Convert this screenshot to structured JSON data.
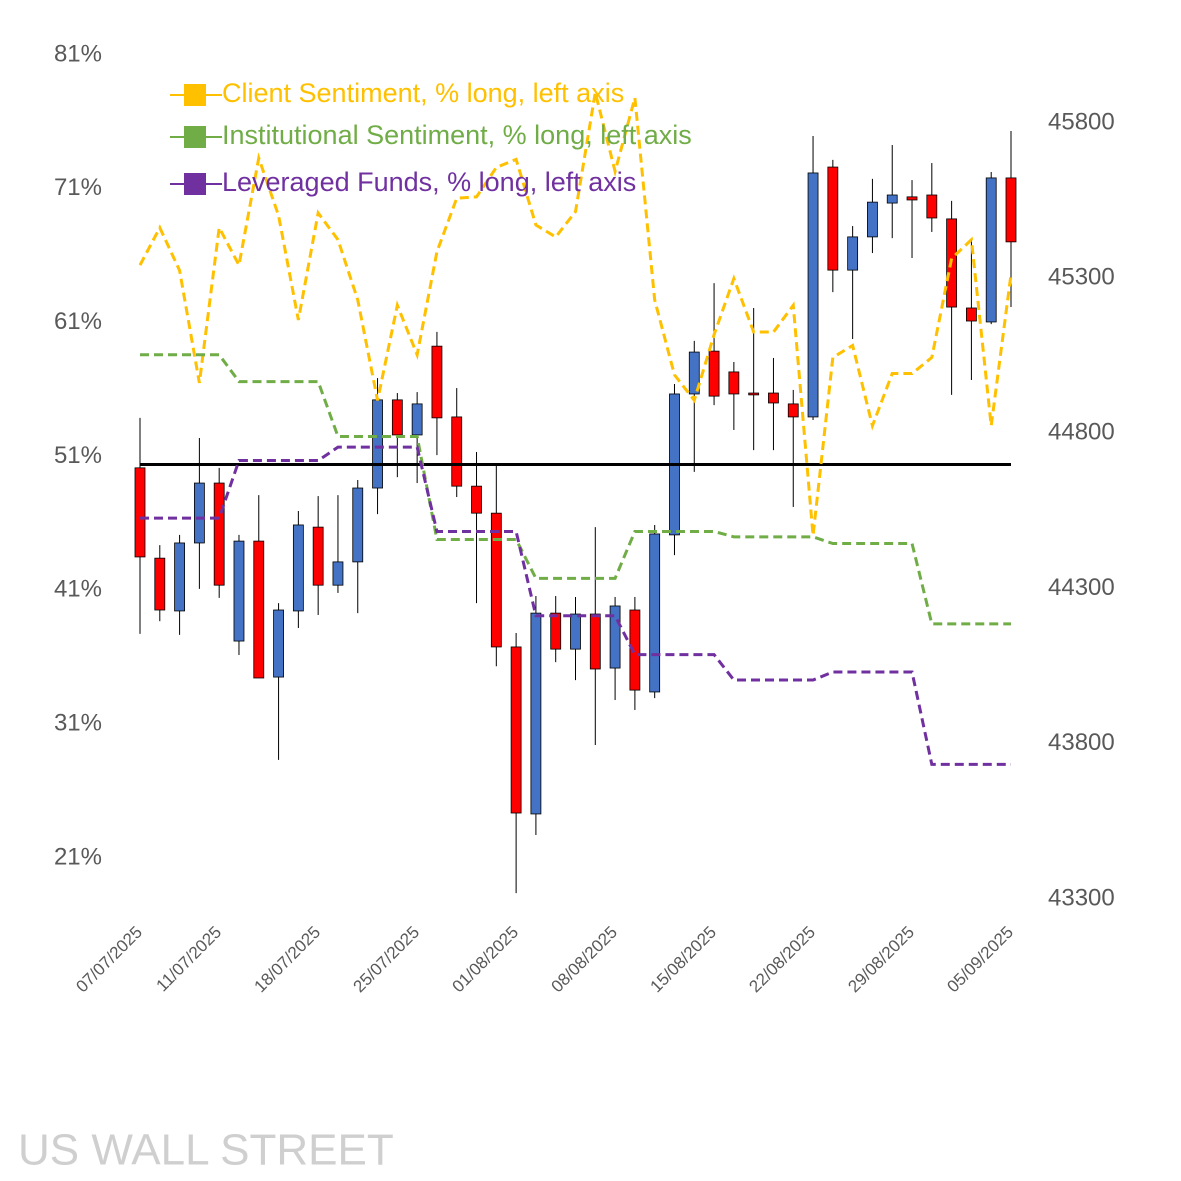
{
  "chart_data": {
    "type": "candlestick",
    "categories": [
      "07/07/2025",
      null,
      null,
      null,
      "11/07/2025",
      null,
      null,
      null,
      null,
      "18/07/2025",
      null,
      null,
      null,
      null,
      "25/07/2025",
      null,
      null,
      null,
      null,
      "01/08/2025",
      null,
      null,
      null,
      null,
      "08/08/2025",
      null,
      null,
      null,
      null,
      "15/08/2025",
      null,
      null,
      null,
      null,
      "22/08/2025",
      null,
      null,
      null,
      null,
      "29/08/2025",
      null,
      null,
      null,
      null,
      "05/09/2025"
    ],
    "axis": "y2",
    "open": [
      44689,
      44398,
      44228,
      44447,
      44640,
      44131,
      44453,
      44015,
      44228,
      44498,
      44311,
      44386,
      44624,
      44908,
      44795,
      45081,
      44853,
      44630,
      44543,
      44112,
      43574,
      44221,
      44105,
      44218,
      44044,
      44231,
      43967,
      44473,
      44927,
      45065,
      44998,
      44930,
      44930,
      44895,
      44853,
      45658,
      45326,
      45433,
      45542,
      45562,
      45568,
      45491,
      45204,
      45159,
      45623
    ],
    "high": [
      44850,
      44440,
      44473,
      44785,
      44689,
      44473,
      44601,
      44253,
      44550,
      44598,
      44601,
      44650,
      44978,
      44930,
      44933,
      45127,
      44946,
      44740,
      44698,
      44157,
      44276,
      44276,
      44273,
      44498,
      44273,
      44273,
      44505,
      44959,
      45098,
      45284,
      45030,
      45204,
      45043,
      44940,
      45758,
      45681,
      45468,
      45620,
      45729,
      45616,
      45671,
      45549,
      45423,
      45642,
      45774
    ],
    "low": [
      44154,
      44195,
      44151,
      44299,
      44270,
      44086,
      44012,
      43748,
      44173,
      44215,
      44286,
      44221,
      44540,
      44659,
      44640,
      44730,
      44595,
      44253,
      44050,
      43319,
      43506,
      44063,
      44005,
      43796,
      43941,
      43909,
      43947,
      44408,
      44676,
      44891,
      44811,
      44746,
      44746,
      44563,
      44843,
      45255,
      45104,
      45381,
      45429,
      45365,
      45449,
      44924,
      44972,
      45152,
      45207
    ],
    "close": [
      44402,
      44231,
      44447,
      44640,
      44311,
      44453,
      44012,
      44231,
      44505,
      44311,
      44386,
      44624,
      44908,
      44795,
      44895,
      44850,
      44630,
      44543,
      44112,
      43577,
      44221,
      44105,
      44218,
      44041,
      44244,
      43973,
      44476,
      44927,
      45062,
      44920,
      44927,
      44924,
      44898,
      44853,
      45639,
      45326,
      45433,
      45545,
      45568,
      45552,
      45494,
      45207,
      45162,
      45623,
      45417
    ],
    "up_color": "#4472c4",
    "down_color": "#ff0000",
    "series": [
      {
        "name": "Client Sentiment, % long, left axis",
        "color": "#ffc000",
        "values": [
          65.3,
          68.1,
          64.9,
          56.5,
          68.1,
          65.3,
          73.3,
          69.0,
          61.2,
          69.2,
          67.2,
          62.7,
          55.2,
          62.3,
          58.6,
          66.3,
          70.3,
          70.4,
          72.6,
          73.2,
          68.3,
          67.4,
          69.3,
          78.2,
          72.3,
          77.8,
          62.7,
          57.1,
          55.2,
          60.1,
          64.3,
          60.3,
          60.3,
          62.3,
          45.1,
          58.4,
          59.3,
          53.3,
          57.2,
          57.2,
          58.4,
          65.8,
          67.2,
          53.3,
          64.6
        ]
      },
      {
        "name": "Institutional Sentiment, % long, left axis",
        "color": "#70ad47",
        "values": [
          58.6,
          58.6,
          58.6,
          58.6,
          58.6,
          56.6,
          56.6,
          56.6,
          56.6,
          56.6,
          52.5,
          52.5,
          52.5,
          52.5,
          52.5,
          44.8,
          44.8,
          44.8,
          44.8,
          44.8,
          41.9,
          41.9,
          41.9,
          41.9,
          41.9,
          45.4,
          45.4,
          45.4,
          45.4,
          45.4,
          45.0,
          45.0,
          45.0,
          45.0,
          45.0,
          44.5,
          44.5,
          44.5,
          44.5,
          44.5,
          38.5,
          38.5,
          38.5,
          38.5,
          38.5
        ]
      },
      {
        "name": "Leveraged Funds, % long, left axis",
        "color": "#7030a0",
        "values": [
          46.4,
          46.4,
          46.4,
          46.4,
          46.4,
          50.7,
          50.7,
          50.7,
          50.7,
          50.7,
          51.7,
          51.7,
          51.7,
          51.7,
          51.7,
          45.4,
          45.4,
          45.4,
          45.4,
          45.4,
          39.1,
          39.1,
          39.1,
          39.1,
          39.1,
          36.2,
          36.2,
          36.2,
          36.2,
          36.2,
          34.3,
          34.3,
          34.3,
          34.3,
          34.3,
          34.9,
          34.9,
          34.9,
          34.9,
          34.9,
          28.0,
          28.0,
          28.0,
          28.0,
          28.0
        ]
      }
    ],
    "hline": 50.4,
    "ylim": [
      17.94,
      81
    ],
    "yticks": [
      {
        "value": 81,
        "label": "81%"
      },
      {
        "value": 71,
        "label": "71%"
      },
      {
        "value": 61,
        "label": "61%"
      },
      {
        "value": 51,
        "label": "51%"
      },
      {
        "value": 41,
        "label": "41%"
      },
      {
        "value": 31,
        "label": "31%"
      },
      {
        "value": 21,
        "label": "21%"
      }
    ],
    "y2lim": [
      43300,
      46019
    ],
    "y2ticks": [
      45800,
      45300,
      44800,
      44300,
      43800,
      43300
    ],
    "watermark": "US WALL STREET"
  }
}
